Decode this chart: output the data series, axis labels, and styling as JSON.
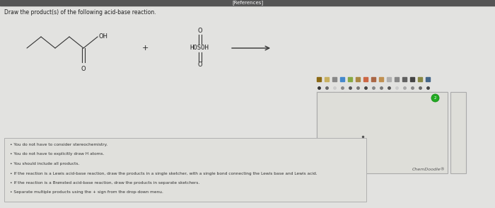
{
  "bg_color": "#c8c8c8",
  "panel_bg": "#e2e2e0",
  "top_bar_color": "#555555",
  "top_bar_height": 8,
  "title_text": "Draw the product(s) of the following acid-base reaction.",
  "title_fontsize": 5.5,
  "references_text": "[References]",
  "references_fontsize": 5,
  "bullet_points": [
    "You do not have to consider stereochemistry.",
    "You do not have to explicitly draw H atoms.",
    "You should include all products.",
    "If the reaction is a Lewis acid-base reaction, draw the products in a single sketcher, with a single bond connecting the Lewis base and Lewis acid.",
    "If the reaction is a Brønsted acid-base reaction, draw the products in separate sketchers.",
    "Separate multiple products using the + sign from the drop-down menu."
  ],
  "bullet_fontsize": 4.2,
  "chemdoodle_text": "ChemDoodle®",
  "chemdoodle_fontsize": 4.5,
  "sketcher_bg": "#deded9",
  "sketcher_border": "#aaaaaa",
  "info_box_bg": "#e0e0dc",
  "info_box_border": "#b0b0b0",
  "line_color": "#333333",
  "text_color": "#222222"
}
